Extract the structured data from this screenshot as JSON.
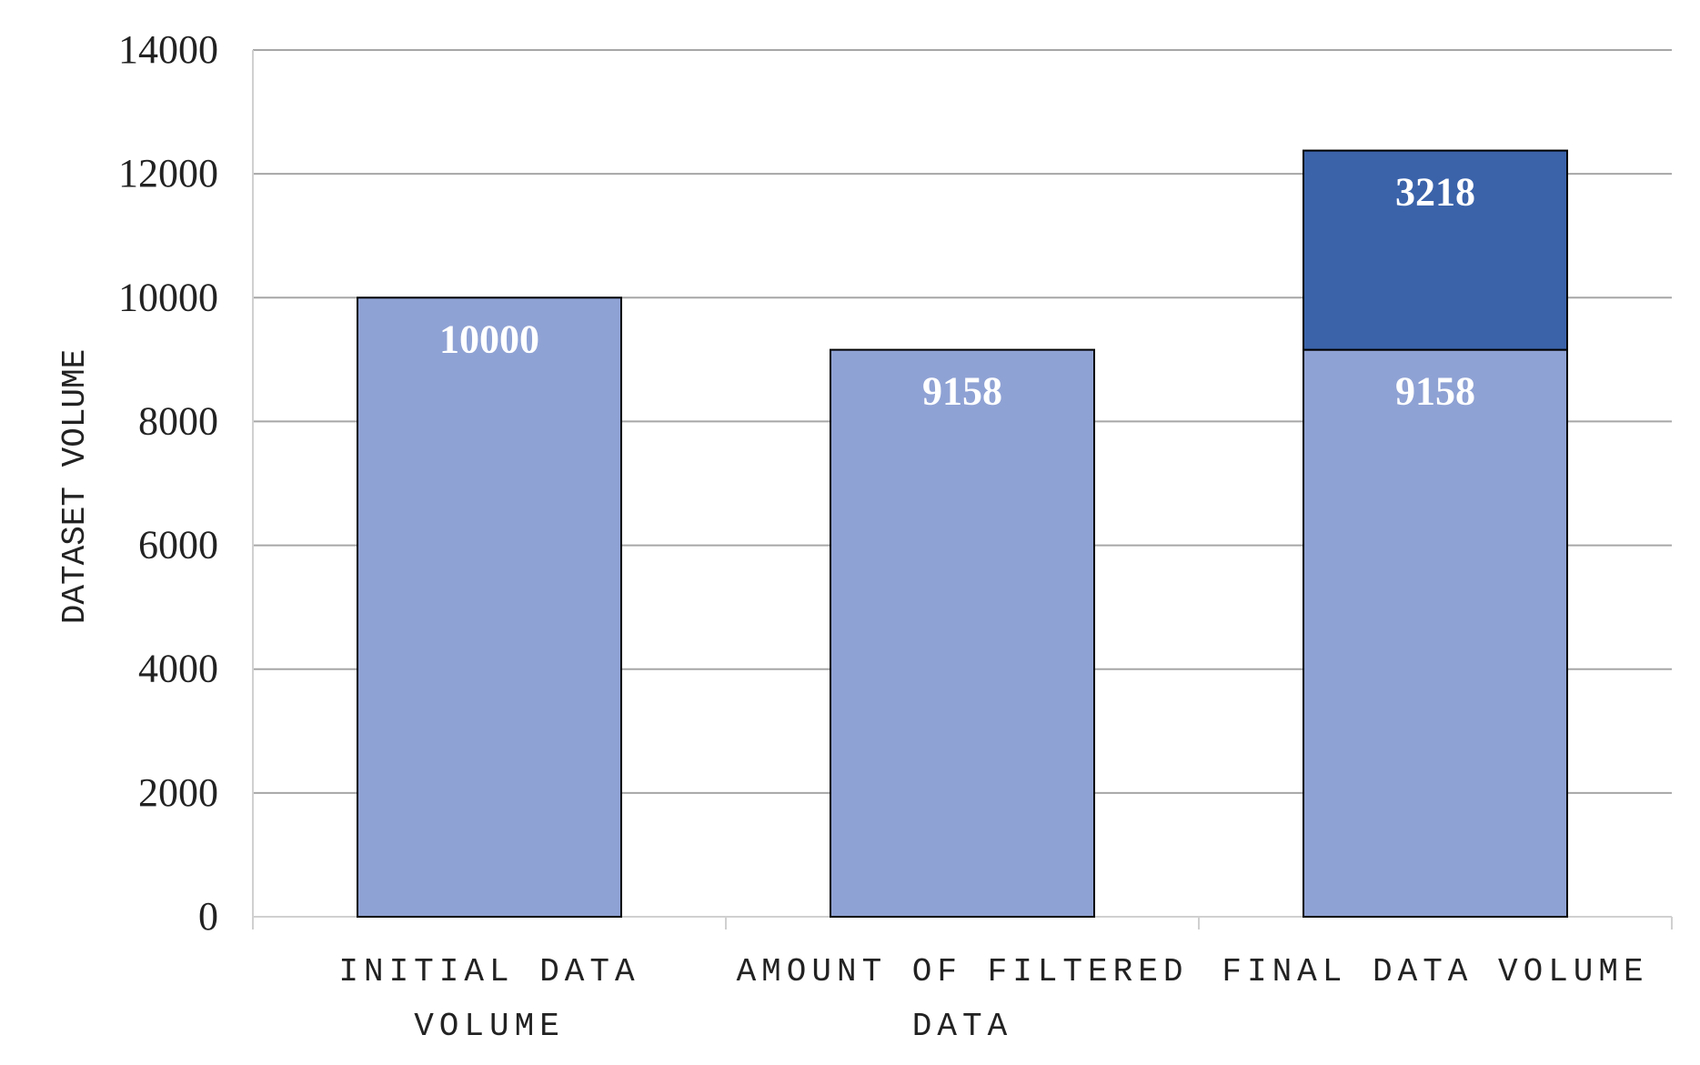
{
  "chart_data": {
    "type": "bar",
    "stacked": true,
    "categories": [
      [
        "INITIAL DATA",
        "VOLUME"
      ],
      [
        "AMOUNT OF FILTERED",
        "DATA"
      ],
      [
        "FINAL DATA VOLUME"
      ]
    ],
    "series": [
      {
        "values": [
          10000,
          9158,
          9158
        ],
        "color": "#8fa2d4"
      },
      {
        "values": [
          0,
          0,
          3218
        ],
        "color": "#3b63aa"
      }
    ],
    "data_labels": [
      [
        "10000",
        "9158",
        "9158"
      ],
      [
        "",
        "",
        "3218"
      ]
    ],
    "title": "",
    "xlabel": "",
    "ylabel": "DATASET VOLUME",
    "ylim": [
      0,
      14000
    ],
    "yticks": [
      0,
      2000,
      4000,
      6000,
      8000,
      10000,
      12000,
      14000
    ],
    "grid": true,
    "legend": "none",
    "colors": {
      "gridline": "#a6a6a6",
      "axis": "#d0d0d0",
      "bar_border": "#000000",
      "text": "#222222",
      "label_text": "#ffffff"
    }
  }
}
